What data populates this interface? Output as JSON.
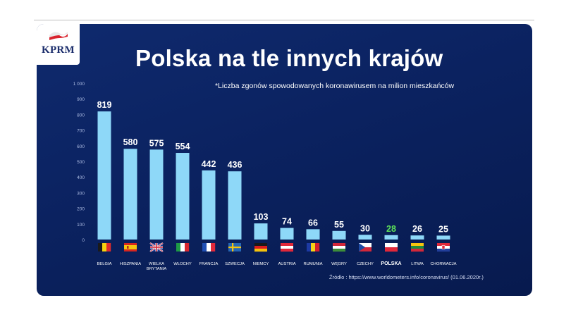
{
  "logo": {
    "text": "KPRM"
  },
  "title": "Polska na tle innych krajów",
  "subtitle": "*Liczba zgonów spowodowanych koronawirusem  na milion mieszkańców",
  "source": "Źródło : https://www.worldometers.info/coronavirus/ (01.06.2020r.)",
  "colors": {
    "background": "#0b2260",
    "bar": "#8ed8f8",
    "highlight_label": "#5ee35a",
    "text": "#ffffff"
  },
  "chart_data": {
    "type": "bar",
    "title": "Polska na tle innych krajów",
    "ylim": [
      0,
      1000
    ],
    "yticks": [
      "0",
      "100",
      "200",
      "300",
      "400",
      "500",
      "600",
      "700",
      "800",
      "900",
      "1 000"
    ],
    "categories": [
      "BELGIA",
      "HISZPANIA",
      "WIELKA BRYTANIA",
      "WŁOCHY",
      "FRANCJA",
      "SZWECJA",
      "NIEMCY",
      "AUSTRIA",
      "RUMUNIA",
      "WĘGRY",
      "CZECHY",
      "POLSKA",
      "LITWA",
      "CHORWACJA"
    ],
    "category_lines": [
      [
        "BELGIA"
      ],
      [
        "HISZPANIA"
      ],
      [
        "WIELKA",
        "BRYTANIA"
      ],
      [
        "WŁOCHY"
      ],
      [
        "FRANCJA"
      ],
      [
        "SZWECJA"
      ],
      [
        "NIEMCY"
      ],
      [
        "AUSTRIA"
      ],
      [
        "RUMUNIA"
      ],
      [
        "WĘGRY"
      ],
      [
        "CZECHY"
      ],
      [
        "POLSKA"
      ],
      [
        "LITWA"
      ],
      [
        "CHORWACJA"
      ]
    ],
    "values": [
      819,
      580,
      575,
      554,
      442,
      436,
      103,
      74,
      66,
      55,
      30,
      28,
      26,
      25
    ],
    "highlight": "POLSKA",
    "flags": [
      "flag-belgium",
      "flag-spain",
      "flag-united-kingdom",
      "flag-italy",
      "flag-france",
      "flag-sweden",
      "flag-germany",
      "flag-austria",
      "flag-romania",
      "flag-hungary",
      "flag-czechia",
      "flag-poland",
      "flag-lithuania",
      "flag-croatia"
    ],
    "grid": false,
    "legend": "none"
  }
}
